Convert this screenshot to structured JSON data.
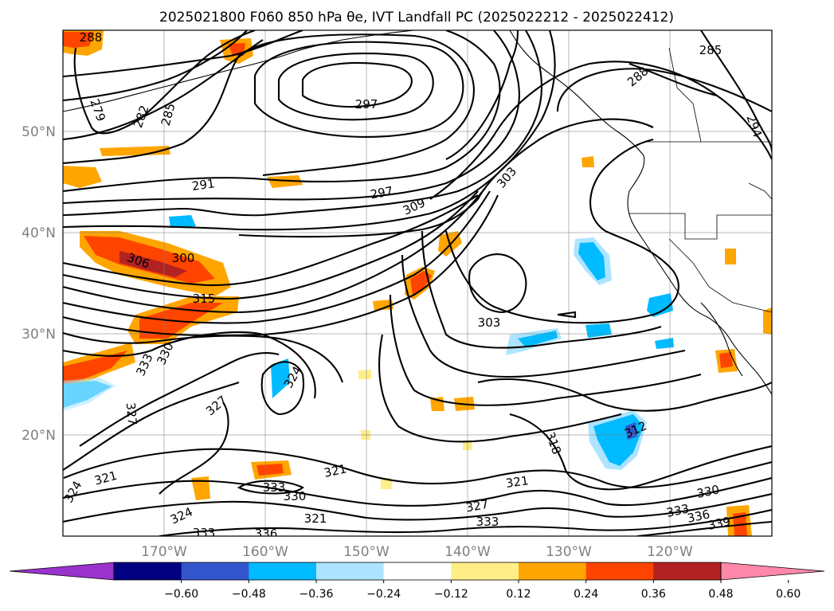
{
  "title": "2025021800 F060 850 hPa θe, IVT Landfall PC (2025022212 - 2025022412)",
  "map": {
    "lat_labels": [
      "50°N",
      "40°N",
      "30°N",
      "20°N"
    ],
    "lon_labels": [
      "170°W",
      "160°W",
      "150°W",
      "140°W",
      "130°W",
      "120°W"
    ],
    "contour_labels": [
      "288",
      "279",
      "282",
      "285",
      "297",
      "291",
      "297",
      "309",
      "303",
      "306",
      "300",
      "315",
      "303",
      "333",
      "330",
      "324",
      "327",
      "327",
      "321",
      "324",
      "333",
      "330",
      "321",
      "318",
      "312",
      "321",
      "327",
      "333",
      "330",
      "333",
      "336",
      "339",
      "285",
      "288",
      "294",
      "336",
      "333",
      "321",
      "324"
    ]
  },
  "colorbar": {
    "colors": [
      "#9933cc",
      "#000080",
      "#3355cc",
      "#00bbff",
      "#aee4ff",
      "#ffffff",
      "#ffee88",
      "#ffa500",
      "#ff4400",
      "#b22222",
      "#ff88aa"
    ],
    "extend_low_color": "#9933cc",
    "extend_high_color": "#ff88aa",
    "tick_labels": [
      "−0.60",
      "−0.48",
      "−0.36",
      "−0.24",
      "−0.12",
      "0.12",
      "0.24",
      "0.36",
      "0.48",
      "0.60"
    ]
  }
}
